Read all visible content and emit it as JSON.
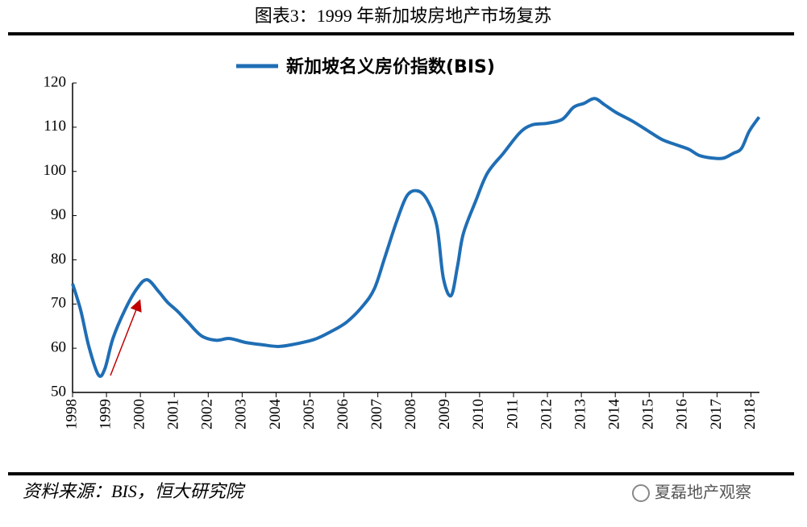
{
  "chart_data": {
    "type": "line",
    "title": "图表3：1999 年新加坡房地产市场复苏",
    "source": "资料来源：BIS，恒大研究院",
    "watermark": "夏磊地产观察",
    "x": [
      1998.0,
      1998.24,
      1998.48,
      1998.76,
      1998.95,
      1999.19,
      1999.54,
      1999.9,
      2000.2,
      2000.54,
      2000.8,
      2001.09,
      2001.4,
      2001.8,
      2002.23,
      2002.63,
      2003.1,
      2003.58,
      2004.06,
      2004.53,
      2005.13,
      2005.6,
      2006.08,
      2006.55,
      2006.9,
      2007.2,
      2007.55,
      2007.86,
      2008.17,
      2008.45,
      2008.74,
      2008.93,
      2009.16,
      2009.35,
      2009.52,
      2009.88,
      2010.23,
      2010.7,
      2011.18,
      2011.54,
      2012.0,
      2012.44,
      2012.77,
      2013.08,
      2013.39,
      2013.68,
      2014.03,
      2014.5,
      2014.98,
      2015.38,
      2015.8,
      2016.17,
      2016.48,
      2016.88,
      2017.19,
      2017.48,
      2017.72,
      2017.95,
      2018.24
    ],
    "series": [
      {
        "name": "新加坡名义房价指数(BIS)",
        "color": "#1f6eb5",
        "values": [
          74.6,
          68.6,
          60.4,
          54,
          55.3,
          62.2,
          68.6,
          73.5,
          75.5,
          72.8,
          70.4,
          68.4,
          65.9,
          62.8,
          61.8,
          62.2,
          61.3,
          60.8,
          60.4,
          60.9,
          62,
          63.7,
          65.9,
          69.5,
          73.5,
          80.4,
          88.6,
          94.5,
          95.6,
          93.6,
          87.7,
          75.9,
          71.9,
          78.6,
          85.9,
          93.2,
          99.6,
          104.1,
          108.7,
          110.5,
          110.9,
          111.8,
          114.5,
          115.4,
          116.5,
          115.1,
          113.3,
          111.4,
          109.1,
          107.2,
          106,
          105,
          103.6,
          103,
          103,
          104.1,
          105.2,
          109.1,
          112.3
        ]
      }
    ],
    "xlim": [
      1998,
      2018.25
    ],
    "xticks": [
      1998,
      1999,
      2000,
      2001,
      2002,
      2003,
      2004,
      2005,
      2006,
      2007,
      2008,
      2009,
      2010,
      2011,
      2012,
      2013,
      2014,
      2015,
      2016,
      2017,
      2018
    ],
    "ylim": [
      50,
      120
    ],
    "yticks": [
      50,
      60,
      70,
      80,
      90,
      100,
      110,
      120
    ],
    "legend": "top"
  }
}
